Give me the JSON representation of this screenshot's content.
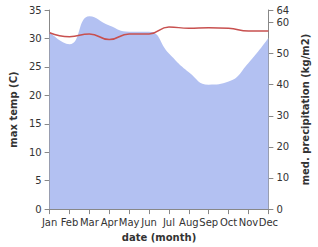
{
  "chart_data": {
    "type": "line",
    "categories": [
      "Jan",
      "Feb",
      "Mar",
      "Apr",
      "May",
      "Jun",
      "Jul",
      "Aug",
      "Sep",
      "Oct",
      "Nov",
      "Dec"
    ],
    "x_label": "date (month)",
    "y_label": "max temp (C)",
    "y2_label": "med. precipitation (kg/m2)",
    "ylim": [
      0,
      35
    ],
    "yticks": [
      0,
      5,
      10,
      15,
      20,
      25,
      30,
      35
    ],
    "y2lim": [
      0,
      64
    ],
    "y2ticks": [
      0,
      10,
      20,
      30,
      40,
      50,
      60
    ],
    "grid": false,
    "series": [
      {
        "name": "med. precipitation",
        "type": "area",
        "axis": "y2",
        "color": "#b3c1f2",
        "values": [
          57,
          53,
          62,
          59,
          57,
          57,
          50,
          44,
          40,
          41,
          47,
          55
        ]
      },
      {
        "name": "max temp",
        "type": "line",
        "color": "#c8504f",
        "values": [
          31.0,
          30.3,
          30.8,
          29.8,
          30.8,
          30.8,
          32.0,
          31.8,
          31.9,
          31.8,
          31.3,
          31.3
        ]
      }
    ]
  }
}
